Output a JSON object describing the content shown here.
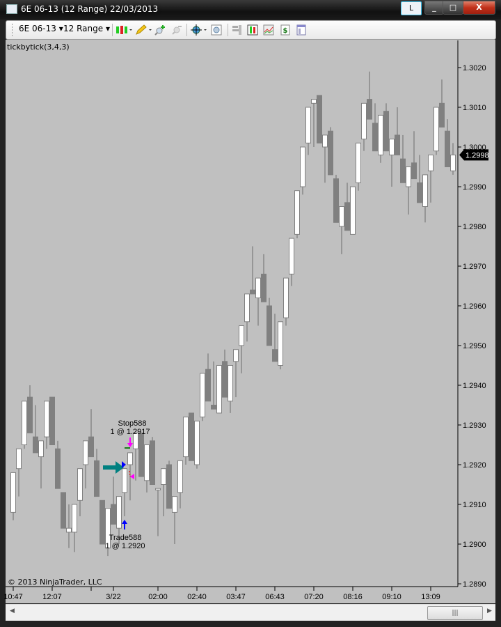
{
  "window": {
    "title": "6E 06-13 (12 Range)  22/03/2013",
    "buttons": {
      "layout": "L",
      "minimize": "_",
      "maximize": "□",
      "close": "X"
    }
  },
  "toolbar": {
    "instrument": "6E 06-13",
    "period": "12 Range",
    "icons": [
      "bar-type-candlestick-icon",
      "drawing-pencil-icon",
      "zoom-in-icon",
      "zoom-out-icon",
      "crosshair-globe-icon",
      "data-box-icon",
      "properties-icon",
      "indicators-icon",
      "strategies-icon",
      "dollar-orders-icon",
      "chart-trader-icon"
    ]
  },
  "chart": {
    "indicator_label": "tickbytick(3,4,3)",
    "copyright": "© 2013 NinjaTrader, LLC",
    "last_price_label": "1.2998",
    "colors": {
      "background": "#c0c0c0",
      "up_body": "#ffffff",
      "down_body": "#808080",
      "outline": "#808080",
      "wick": "#808080"
    }
  },
  "chart_data": {
    "type": "candlestick",
    "title": "6E 06-13 (12 Range)",
    "ylim": [
      1.2889,
      1.3026
    ],
    "yticks": [
      "1.2890",
      "1.2900",
      "1.2910",
      "1.2920",
      "1.2930",
      "1.2940",
      "1.2950",
      "1.2960",
      "1.2970",
      "1.2980",
      "1.2990",
      "1.3000",
      "1.3010",
      "1.3020"
    ],
    "xticks": [
      {
        "bar": 1,
        "label": "10:47"
      },
      {
        "bar": 8,
        "label": "12:07"
      },
      {
        "bar": 15,
        "label": ""
      },
      {
        "bar": 19,
        "label": "3/22"
      },
      {
        "bar": 27,
        "label": "02:00"
      },
      {
        "bar": 34,
        "label": "02:40"
      },
      {
        "bar": 41,
        "label": "03:47"
      },
      {
        "bar": 48,
        "label": "06:43"
      },
      {
        "bar": 55,
        "label": "07:20"
      },
      {
        "bar": 62,
        "label": "08:16"
      },
      {
        "bar": 69,
        "label": "09:10"
      },
      {
        "bar": 76,
        "label": "13:09"
      }
    ],
    "ohlc_columns": [
      "open",
      "high",
      "low",
      "close"
    ],
    "bars": [
      [
        1.2908,
        1.2918,
        1.2906,
        1.2918
      ],
      [
        1.2919,
        1.2924,
        1.2912,
        1.2924
      ],
      [
        1.2925,
        1.2936,
        1.2924,
        1.2936
      ],
      [
        1.2937,
        1.294,
        1.2928,
        1.2928
      ],
      [
        1.2927,
        1.2935,
        1.2923,
        1.2923
      ],
      [
        1.2922,
        1.2926,
        1.2914,
        1.2926
      ],
      [
        1.2927,
        1.2936,
        1.2924,
        1.2936
      ],
      [
        1.2937,
        1.2937,
        1.2925,
        1.2925
      ],
      [
        1.2924,
        1.2926,
        1.2914,
        1.2914
      ],
      [
        1.2913,
        1.2913,
        1.2904,
        1.2904
      ],
      [
        1.2903,
        1.291,
        1.2899,
        1.2904
      ],
      [
        1.2903,
        1.291,
        1.2898,
        1.291
      ],
      [
        1.2911,
        1.2919,
        1.2907,
        1.2919
      ],
      [
        1.292,
        1.2926,
        1.2914,
        1.2926
      ],
      [
        1.2927,
        1.2934,
        1.2922,
        1.2922
      ],
      [
        1.2921,
        1.2924,
        1.2912,
        1.2912
      ],
      [
        1.2911,
        1.2911,
        1.29,
        1.29
      ],
      [
        1.2899,
        1.2909,
        1.2897,
        1.2909
      ],
      [
        1.291,
        1.2917,
        1.2905,
        1.2905
      ],
      [
        1.2904,
        1.2912,
        1.29,
        1.2912
      ],
      [
        1.2913,
        1.2919,
        1.2907,
        1.2919
      ],
      [
        1.292,
        1.2923,
        1.2911,
        1.2923
      ],
      [
        1.2924,
        1.2928,
        1.2916,
        1.2928
      ],
      [
        1.2928,
        1.2928,
        1.2917,
        1.2917
      ],
      [
        1.2916,
        1.2925,
        1.2913,
        1.2925
      ],
      [
        1.2926,
        1.2927,
        1.2915,
        1.2915
      ],
      [
        1.2914,
        1.2914,
        1.2902,
        1.2914
      ],
      [
        1.2915,
        1.2919,
        1.2907,
        1.2919
      ],
      [
        1.292,
        1.2921,
        1.2909,
        1.2909
      ],
      [
        1.2908,
        1.2912,
        1.29,
        1.2912
      ],
      [
        1.2913,
        1.2921,
        1.2909,
        1.2921
      ],
      [
        1.2922,
        1.2932,
        1.292,
        1.2932
      ],
      [
        1.2933,
        1.2933,
        1.2921,
        1.2921
      ],
      [
        1.292,
        1.2931,
        1.2919,
        1.2931
      ],
      [
        1.2932,
        1.2943,
        1.2931,
        1.2943
      ],
      [
        1.2944,
        1.2948,
        1.2936,
        1.2936
      ],
      [
        1.2935,
        1.2946,
        1.2934,
        1.2934
      ],
      [
        1.2933,
        1.2945,
        1.2933,
        1.2945
      ],
      [
        1.2946,
        1.2949,
        1.2937,
        1.2937
      ],
      [
        1.2936,
        1.2945,
        1.2933,
        1.2945
      ],
      [
        1.2946,
        1.2949,
        1.2937,
        1.2949
      ],
      [
        1.295,
        1.2955,
        1.2943,
        1.2955
      ],
      [
        1.2956,
        1.2963,
        1.2951,
        1.2963
      ],
      [
        1.2964,
        1.2975,
        1.2963,
        1.2963
      ],
      [
        1.2962,
        1.2967,
        1.2955,
        1.2967
      ],
      [
        1.2968,
        1.2973,
        1.2961,
        1.2961
      ],
      [
        1.296,
        1.2962,
        1.295,
        1.295
      ],
      [
        1.2949,
        1.2958,
        1.2946,
        1.2946
      ],
      [
        1.2945,
        1.2956,
        1.2944,
        1.2956
      ],
      [
        1.2957,
        1.2967,
        1.2955,
        1.2967
      ],
      [
        1.2968,
        1.2977,
        1.2965,
        1.2977
      ],
      [
        1.2978,
        1.2989,
        1.2977,
        1.2989
      ],
      [
        1.299,
        1.3,
        1.2988,
        1.3
      ],
      [
        1.3001,
        1.301,
        1.2998,
        1.301
      ],
      [
        1.3011,
        1.3012,
        1.3,
        1.3012
      ],
      [
        1.3013,
        1.3013,
        1.3001,
        1.3001
      ],
      [
        1.3,
        1.3003,
        1.2991,
        1.3003
      ],
      [
        1.3004,
        1.3005,
        1.2993,
        1.2993
      ],
      [
        1.2992,
        1.2993,
        1.2981,
        1.2981
      ],
      [
        1.298,
        1.2985,
        1.2973,
        1.2985
      ],
      [
        1.2986,
        1.2991,
        1.2979,
        1.2979
      ],
      [
        1.2978,
        1.299,
        1.2978,
        1.299
      ],
      [
        1.2991,
        1.3001,
        1.2989,
        1.3001
      ],
      [
        1.3002,
        1.3011,
        1.2999,
        1.3011
      ],
      [
        1.3012,
        1.3019,
        1.3007,
        1.3007
      ],
      [
        1.3006,
        1.3011,
        1.2999,
        1.2999
      ],
      [
        1.2998,
        1.3008,
        1.2996,
        1.3008
      ],
      [
        1.3009,
        1.3011,
        1.2999,
        1.2999
      ],
      [
        1.2998,
        1.3002,
        1.299,
        1.3002
      ],
      [
        1.3003,
        1.301,
        1.2998,
        1.2998
      ],
      [
        1.2997,
        1.3003,
        1.2991,
        1.2991
      ],
      [
        1.299,
        1.2995,
        1.2983,
        1.2995
      ],
      [
        1.2996,
        1.3004,
        1.2992,
        1.2992
      ],
      [
        1.2991,
        1.2998,
        1.2986,
        1.2986
      ],
      [
        1.2985,
        1.2993,
        1.2981,
        1.2993
      ],
      [
        1.2994,
        1.2998,
        1.2986,
        1.2998
      ],
      [
        1.2999,
        1.301,
        1.2998,
        1.301
      ],
      [
        1.3011,
        1.3017,
        1.3005,
        1.3005
      ],
      [
        1.3004,
        1.3007,
        1.2995,
        1.2995
      ],
      [
        1.2994,
        1.3001,
        1.2993,
        1.2998
      ]
    ],
    "last_price": 1.2998,
    "annotations": [
      {
        "type": "stop-order",
        "name": "Stop588",
        "text": "1 @ 1.2917",
        "bar": 22,
        "price": 1.2917,
        "color": "#ff00ff"
      },
      {
        "type": "entry-fill",
        "name": "Trade588",
        "text": "1 @ 1.2920",
        "bar": 21,
        "price": 1.292,
        "color": "#0000ff"
      }
    ]
  }
}
